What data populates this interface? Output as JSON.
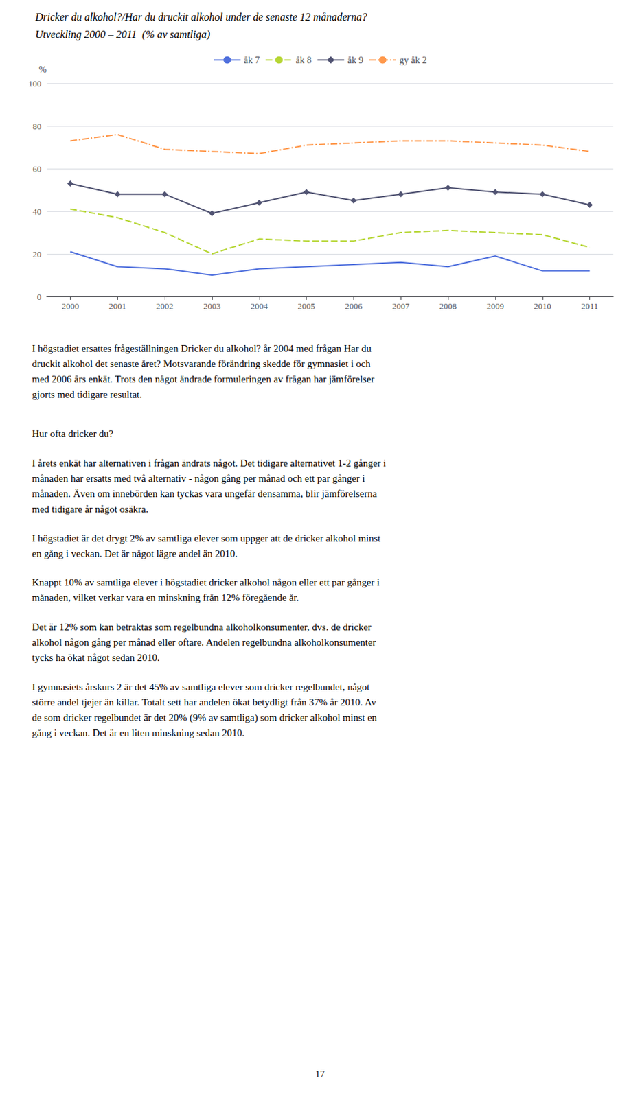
{
  "chart_data": {
    "type": "line",
    "title": "Dricker du alkohol?/Har du druckit alkohol under de senaste 12 månaderna?",
    "subtitle": "Utveckling 2000 – 2011  (% av samtliga)",
    "ylabel": "%",
    "categories": [
      "2000",
      "2001",
      "2002",
      "2003",
      "2004",
      "2005",
      "2006",
      "2007",
      "2008",
      "2009",
      "2010",
      "2011"
    ],
    "series": [
      {
        "name": "åk 7",
        "line_style": "solid",
        "values": [
          21,
          14,
          13,
          10,
          13,
          14,
          15,
          16,
          14,
          19,
          12,
          12
        ]
      },
      {
        "name": "åk 8",
        "line_style": "dashed",
        "values": [
          41,
          37,
          30,
          20,
          27,
          26,
          26,
          30,
          31,
          30,
          29,
          23
        ]
      },
      {
        "name": "åk 9",
        "line_style": "solid",
        "marker": "diamond",
        "values": [
          53,
          48,
          48,
          39,
          44,
          49,
          45,
          48,
          51,
          49,
          48,
          43
        ]
      },
      {
        "name": "gy åk 2",
        "line_style": "dashdot",
        "values": [
          73,
          76,
          69,
          68,
          67,
          71,
          72,
          73,
          73,
          72,
          71,
          68
        ]
      }
    ],
    "ylim": [
      0,
      100
    ],
    "yticks": [
      0,
      20,
      40,
      60,
      80,
      100
    ],
    "grid": true,
    "legend": "top",
    "annotations": [
      [
        "I högstadiet ersattes frågeställningen Dricker du alkohol? år 2004 med frågan Har du",
        "druckit alkohol det senaste året? Motsvarande förändring skedde för gymnasiet i och",
        "med 2006 års enkät. Trots den något ändrade formuleringen av frågan har jämförelser",
        "gjorts med tidigare resultat."
      ],
      [
        "Hur ofta dricker du?"
      ],
      [
        "I årets enkät har alternativen i frågan ändrats något. Det tidigare alternativet 1-2 gånger i",
        "månaden har ersatts med två alternativ - någon gång per månad och ett par gånger i",
        "månaden. Även om innebörden kan tyckas vara ungefär densamma, blir jämförelserna",
        "med tidigare år något osäkra."
      ],
      [
        "I högstadiet är det drygt 2% av samtliga elever som uppger att de dricker alkohol minst",
        "en gång i veckan. Det är något lägre andel än 2010."
      ],
      [
        "Knappt 10% av samtliga elever i högstadiet dricker alkohol någon eller ett par gånger i",
        "månaden, vilket verkar vara en minskning från 12% föregående år."
      ],
      [
        "Det är 12% som kan betraktas som regelbundna alkoholkonsumenter, dvs. de dricker",
        "alkohol någon gång per månad eller oftare. Andelen regelbundna alkoholkonsumenter",
        "tycks ha ökat något sedan 2010."
      ],
      [
        "I gymnasiets årskurs 2 är det 45% av samtliga elever som dricker regelbundet, något",
        "större andel tjejer än killar. Totalt sett har andelen ökat betydligt från 37% år 2010. Av",
        "de som dricker regelbundet är det 20% (9% av samtliga) som dricker alkohol minst en",
        "gång i veckan. Det är en liten minskning sedan 2010."
      ]
    ],
    "page_number": "17"
  }
}
